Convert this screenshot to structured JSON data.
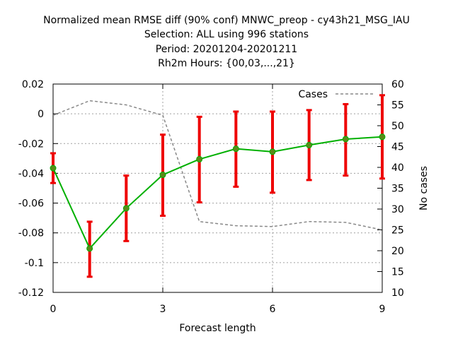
{
  "chart_data": {
    "type": "line",
    "title_lines": [
      "Normalized mean RMSE diff (90% conf) MNWC_preop - cy43h21_MSG_IAU",
      "Selection: ALL using   996 stations",
      "Period: 20201204-20201211",
      "Rh2m   Hours: {00,03,...,21}"
    ],
    "xlabel": "Forecast length",
    "ylabel": "",
    "y2label": "No cases",
    "xlim": [
      0,
      9
    ],
    "ylim": [
      -0.12,
      0.02
    ],
    "y2lim": [
      10,
      60
    ],
    "xticks": [
      "0",
      "3",
      "6",
      "9"
    ],
    "yticks": [
      "0.02",
      "0",
      "-0.02",
      "-0.04",
      "-0.06",
      "-0.08",
      "-0.1",
      "-0.12"
    ],
    "y2ticks": [
      "60",
      "55",
      "50",
      "45",
      "40",
      "35",
      "30",
      "25",
      "20",
      "15",
      "10"
    ],
    "grid": true,
    "legend_position": "top-right",
    "series": [
      {
        "name": "",
        "color": "#00b000",
        "marker_color": "#5a8a1a",
        "x": [
          0,
          1,
          2,
          3,
          4,
          5,
          6,
          7,
          8,
          9
        ],
        "y": [
          -0.0365,
          -0.0905,
          -0.0635,
          -0.041,
          -0.0305,
          -0.0235,
          -0.0255,
          -0.021,
          -0.017,
          -0.0155
        ]
      },
      {
        "name": "Cases",
        "color": "#888888",
        "axis": "y2",
        "x": [
          0,
          1,
          2,
          3,
          4,
          5,
          6,
          7,
          8,
          9
        ],
        "y": [
          52.5,
          56,
          55,
          52.5,
          27,
          26,
          25.8,
          27,
          26.8,
          25
        ]
      }
    ],
    "error_bars": {
      "color": "#ee0000",
      "x": [
        0,
        1,
        2,
        3,
        4,
        5,
        6,
        7,
        8,
        9
      ],
      "low": [
        -0.0465,
        -0.1095,
        -0.0855,
        -0.0685,
        -0.0595,
        -0.049,
        -0.053,
        -0.0445,
        -0.0415,
        -0.0435
      ],
      "high": [
        -0.0265,
        -0.0725,
        -0.0415,
        -0.014,
        -0.002,
        0.0015,
        0.0015,
        0.0025,
        0.0065,
        0.0125
      ]
    }
  }
}
